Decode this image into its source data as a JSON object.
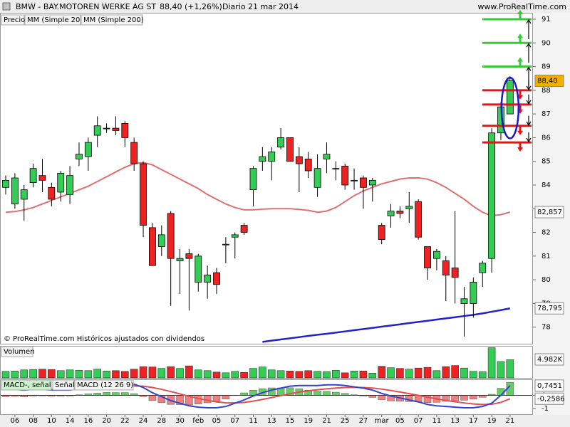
{
  "header": {
    "title": "BMW - BAY.MOTOREN WERKE AG ST",
    "change": "88,40 (+1,26%)",
    "period": "Diario",
    "date": "21 mar 2014",
    "site": "www.ProRealTime.com",
    "note": "© ProRealTime.com Históricos ajustados con dividendos"
  },
  "chart_data": [
    {
      "type": "candlestick",
      "categories": [
        null,
        "06",
        null,
        "08",
        null,
        "10",
        null,
        "14",
        null,
        "16",
        null,
        "20",
        null,
        "22",
        null,
        "24",
        null,
        "28",
        null,
        "30",
        null,
        "feb",
        null,
        "05",
        null,
        "07",
        null,
        "11",
        null,
        "13",
        null,
        "15",
        null,
        "19",
        null,
        "21",
        null,
        "25",
        null,
        "27",
        null,
        "mar",
        null,
        "05",
        null,
        "07",
        null,
        "11",
        null,
        "13",
        null,
        "17",
        null,
        "19",
        null,
        "21"
      ],
      "ylim": [
        77.3,
        91.3
      ],
      "yticks": [
        78,
        79,
        80,
        81,
        82,
        83,
        84,
        85,
        86,
        87,
        88,
        89,
        90,
        91
      ],
      "up_color": "#33cc55",
      "down_color": "#ee2222",
      "series": [
        {
          "name": "Precio",
          "open": [
            83.9,
            83.2,
            83.4,
            84.1,
            84.4,
            83.9,
            83.7,
            83.6,
            85.1,
            85.2,
            86.1,
            86.4,
            86.4,
            86.6,
            85.8,
            84.9,
            82.2,
            81.4,
            82.8,
            80.8,
            81.1,
            79.9,
            79.9,
            80.3,
            81.5,
            81.8,
            82.3,
            83.8,
            85.0,
            85.0,
            85.6,
            86.0,
            85.2,
            85.1,
            83.9,
            85.1,
            84.7,
            84.8,
            84.2,
            84.3,
            84.0,
            82.3,
            82.7,
            82.9,
            83.0,
            83.3,
            81.4,
            80.9,
            80.8,
            80.5,
            79.0,
            79.0,
            80.3,
            80.9,
            86.2,
            87.0
          ],
          "high": [
            84.4,
            84.5,
            84.0,
            84.9,
            85.1,
            84.1,
            84.6,
            84.8,
            85.8,
            86.0,
            86.9,
            86.6,
            86.9,
            86.7,
            86.0,
            85.0,
            82.4,
            82.3,
            82.9,
            81.3,
            81.3,
            81.1,
            80.6,
            80.5,
            81.8,
            82.0,
            82.4,
            84.8,
            85.6,
            85.6,
            86.4,
            86.0,
            85.6,
            85.4,
            85.3,
            85.8,
            85.0,
            84.9,
            84.7,
            84.4,
            84.3,
            82.4,
            83.2,
            83.1,
            83.7,
            83.4,
            81.4,
            81.3,
            81.0,
            82.9,
            79.7,
            80.1,
            80.8,
            86.4,
            87.5,
            88.6
          ],
          "low": [
            83.6,
            83.0,
            82.5,
            83.9,
            83.7,
            83.1,
            83.3,
            83.2,
            84.8,
            84.6,
            85.6,
            86.2,
            86.1,
            85.6,
            84.6,
            81.8,
            80.6,
            81.0,
            78.9,
            79.4,
            78.7,
            79.5,
            79.2,
            79.4,
            80.7,
            80.9,
            81.9,
            83.1,
            84.6,
            84.2,
            85.5,
            85.0,
            83.7,
            84.3,
            83.5,
            84.5,
            84.2,
            83.8,
            83.8,
            83.0,
            83.3,
            81.5,
            82.2,
            82.6,
            82.4,
            81.7,
            80.0,
            80.4,
            79.1,
            79.0,
            77.6,
            78.4,
            79.7,
            80.3,
            85.9,
            87.0
          ],
          "close": [
            84.2,
            84.3,
            83.8,
            84.7,
            84.2,
            83.4,
            84.5,
            84.4,
            85.3,
            85.8,
            86.5,
            86.4,
            86.3,
            86.0,
            84.9,
            82.3,
            80.6,
            81.9,
            80.9,
            80.9,
            80.9,
            81.0,
            80.2,
            79.8,
            81.5,
            81.9,
            82.0,
            84.7,
            85.2,
            85.4,
            86.0,
            85.0,
            84.9,
            84.6,
            84.7,
            85.3,
            84.7,
            84.0,
            84.2,
            83.9,
            84.2,
            81.7,
            82.9,
            82.8,
            83.1,
            81.8,
            80.5,
            81.2,
            80.2,
            80.1,
            79.2,
            79.9,
            80.7,
            86.2,
            87.3,
            88.4
          ],
          "color": "#e8a000",
          "value_labels": [
            null,
            null,
            null,
            null,
            null,
            null,
            null,
            null,
            null,
            null,
            null,
            null,
            null,
            null,
            null,
            null,
            null,
            null,
            null,
            null,
            null,
            null,
            null,
            null,
            null,
            null,
            null,
            null,
            null,
            null,
            null,
            null,
            null,
            null,
            null,
            null,
            null,
            null,
            null,
            null,
            null,
            null,
            null,
            null,
            null,
            null,
            null,
            null,
            null,
            null,
            null,
            null,
            null,
            null,
            null,
            "88,40"
          ]
        },
        {
          "name": "MM (Simple 20)",
          "color": "#e07070",
          "values": [
            82.85,
            82.88,
            82.95,
            83.05,
            83.2,
            83.35,
            83.5,
            83.65,
            83.8,
            83.95,
            84.15,
            84.35,
            84.55,
            84.75,
            84.9,
            84.95,
            84.85,
            84.65,
            84.45,
            84.25,
            84.05,
            83.85,
            83.6,
            83.4,
            83.2,
            83.05,
            82.95,
            82.95,
            82.98,
            83.0,
            83.0,
            83.0,
            82.97,
            82.93,
            82.85,
            82.9,
            83.05,
            83.3,
            83.55,
            83.75,
            83.9,
            84.05,
            84.15,
            84.25,
            84.3,
            84.3,
            84.25,
            84.1,
            83.9,
            83.65,
            83.4,
            83.1,
            82.85,
            82.7,
            82.75,
            82.857
          ],
          "value_labels": [
            null,
            null,
            null,
            null,
            null,
            null,
            null,
            null,
            null,
            null,
            null,
            null,
            null,
            null,
            null,
            null,
            null,
            null,
            null,
            null,
            null,
            null,
            null,
            null,
            null,
            null,
            null,
            null,
            null,
            null,
            null,
            null,
            null,
            null,
            null,
            null,
            null,
            null,
            null,
            null,
            null,
            null,
            null,
            null,
            null,
            null,
            null,
            null,
            null,
            null,
            null,
            null,
            null,
            null,
            null,
            "82,857"
          ]
        },
        {
          "name": "MM (Simple 200)",
          "color": "#2222cc",
          "values": [
            null,
            null,
            null,
            null,
            null,
            null,
            null,
            null,
            null,
            null,
            null,
            null,
            null,
            null,
            null,
            null,
            null,
            null,
            null,
            null,
            null,
            null,
            null,
            null,
            null,
            null,
            null,
            null,
            77.38,
            77.43,
            77.48,
            77.53,
            77.58,
            77.63,
            77.68,
            77.72,
            77.77,
            77.82,
            77.87,
            77.92,
            77.97,
            78.02,
            78.07,
            78.12,
            78.17,
            78.22,
            78.27,
            78.32,
            78.37,
            78.42,
            78.47,
            78.52,
            78.58,
            78.65,
            78.72,
            78.795
          ],
          "value_labels": [
            null,
            null,
            null,
            null,
            null,
            null,
            null,
            null,
            null,
            null,
            null,
            null,
            null,
            null,
            null,
            null,
            null,
            null,
            null,
            null,
            null,
            null,
            null,
            null,
            null,
            null,
            null,
            null,
            null,
            null,
            null,
            null,
            null,
            null,
            null,
            null,
            null,
            null,
            null,
            null,
            null,
            null,
            null,
            null,
            null,
            null,
            null,
            null,
            null,
            null,
            null,
            null,
            null,
            null,
            null,
            "78,795"
          ]
        }
      ],
      "levels": [
        {
          "value": 91,
          "color": "#33cc33"
        },
        {
          "value": 90,
          "color": "#33cc33"
        },
        {
          "value": 89,
          "color": "#33cc33"
        },
        {
          "value": 88,
          "color": "#ee1111"
        },
        {
          "value": 87.4,
          "color": "#ee1111"
        },
        {
          "value": 86.5,
          "color": "#ee1111"
        },
        {
          "value": 85.8,
          "color": "#ee1111"
        }
      ]
    },
    {
      "type": "bar",
      "ylim": [
        0,
        8.6
      ],
      "series": [
        {
          "name": "Volumen",
          "values": [
            1.8,
            1.9,
            2.2,
            2.3,
            2.4,
            2.3,
            2.0,
            2.2,
            2.1,
            2.0,
            2.4,
            1.9,
            2.0,
            1.8,
            2.4,
            3.1,
            3.0,
            2.6,
            3.1,
            2.6,
            3.3,
            2.2,
            2.0,
            1.6,
            1.4,
            1.8,
            1.5,
            2.6,
            3.0,
            2.2,
            2.0,
            1.9,
            1.8,
            2.0,
            1.8,
            1.7,
            2.1,
            1.4,
            1.9,
            1.9,
            1.3,
            3.2,
            2.8,
            2.6,
            2.4,
            2.7,
            2.9,
            2.0,
            3.1,
            3.4,
            2.7,
            1.8,
            1.7,
            8.3,
            4.5,
            4.982
          ],
          "value_labels": [
            null,
            null,
            null,
            null,
            null,
            null,
            null,
            null,
            null,
            null,
            null,
            null,
            null,
            null,
            null,
            null,
            null,
            null,
            null,
            null,
            null,
            null,
            null,
            null,
            null,
            null,
            null,
            null,
            null,
            null,
            null,
            null,
            null,
            null,
            null,
            null,
            null,
            null,
            null,
            null,
            null,
            null,
            null,
            null,
            null,
            null,
            null,
            null,
            null,
            null,
            null,
            null,
            null,
            null,
            null,
            "4.982K"
          ]
        }
      ]
    },
    {
      "type": "macd",
      "ylim": [
        -1.44,
        1.17
      ],
      "yticks": [
        0,
        -1
      ],
      "series": [
        {
          "name": "MACD-, señal",
          "color": "#66cc66",
          "neg_color": "#f08080",
          "values": [
            -0.1,
            -0.08,
            -0.11,
            -0.05,
            -0.04,
            -0.07,
            -0.06,
            -0.05,
            0.04,
            0.11,
            0.17,
            0.22,
            0.21,
            0.21,
            0.13,
            -0.1,
            -0.4,
            -0.56,
            -0.69,
            -0.71,
            -0.73,
            -0.66,
            -0.57,
            -0.45,
            -0.28,
            -0.02,
            0.19,
            0.39,
            0.51,
            0.57,
            0.57,
            0.58,
            0.5,
            0.4,
            0.32,
            0.3,
            0.24,
            0.15,
            0.04,
            -0.05,
            -0.16,
            -0.33,
            -0.42,
            -0.45,
            -0.48,
            -0.5,
            -0.56,
            -0.53,
            -0.46,
            -0.41,
            -0.37,
            -0.29,
            -0.15,
            0.08,
            0.54,
            1.0
          ]
        },
        {
          "name": "Señal",
          "color": "#e05050",
          "values": [
            0.55,
            0.53,
            0.51,
            0.5,
            0.49,
            0.47,
            0.46,
            0.45,
            0.46,
            0.49,
            0.53,
            0.58,
            0.64,
            0.69,
            0.72,
            0.7,
            0.6,
            0.46,
            0.29,
            0.11,
            -0.07,
            -0.24,
            -0.38,
            -0.5,
            -0.57,
            -0.58,
            -0.54,
            -0.44,
            -0.31,
            -0.17,
            -0.02,
            0.12,
            0.25,
            0.35,
            0.43,
            0.5,
            0.56,
            0.6,
            0.61,
            0.6,
            0.56,
            0.48,
            0.37,
            0.25,
            0.13,
            0.0,
            -0.14,
            -0.27,
            -0.39,
            -0.49,
            -0.58,
            -0.66,
            -0.7,
            -0.68,
            -0.54,
            -0.2586
          ],
          "value_labels": [
            null,
            null,
            null,
            null,
            null,
            null,
            null,
            null,
            null,
            null,
            null,
            null,
            null,
            null,
            null,
            null,
            null,
            null,
            null,
            null,
            null,
            null,
            null,
            null,
            null,
            null,
            null,
            null,
            null,
            null,
            null,
            null,
            null,
            null,
            null,
            null,
            null,
            null,
            null,
            null,
            null,
            null,
            null,
            null,
            null,
            null,
            null,
            null,
            null,
            null,
            null,
            null,
            null,
            null,
            null,
            "-0,2586"
          ]
        },
        {
          "name": "MACD (12 26 9)",
          "color": "#3344cc",
          "values": [
            0.45,
            0.45,
            0.4,
            0.45,
            0.45,
            0.4,
            0.4,
            0.4,
            0.5,
            0.6,
            0.7,
            0.8,
            0.85,
            0.9,
            0.85,
            0.6,
            0.2,
            -0.1,
            -0.4,
            -0.6,
            -0.8,
            -0.9,
            -0.95,
            -0.95,
            -0.85,
            -0.6,
            -0.35,
            -0.05,
            0.2,
            0.4,
            0.55,
            0.7,
            0.75,
            0.75,
            0.75,
            0.8,
            0.8,
            0.75,
            0.65,
            0.55,
            0.4,
            0.15,
            -0.05,
            -0.2,
            -0.35,
            -0.5,
            -0.7,
            -0.8,
            -0.85,
            -0.9,
            -0.95,
            -0.95,
            -0.85,
            -0.6,
            0.0,
            0.7451
          ],
          "value_labels": [
            null,
            null,
            null,
            null,
            null,
            null,
            null,
            null,
            null,
            null,
            null,
            null,
            null,
            null,
            null,
            null,
            null,
            null,
            null,
            null,
            null,
            null,
            null,
            null,
            null,
            null,
            null,
            null,
            null,
            null,
            null,
            null,
            null,
            null,
            null,
            null,
            null,
            null,
            null,
            null,
            null,
            null,
            null,
            null,
            null,
            null,
            null,
            null,
            null,
            null,
            null,
            null,
            null,
            null,
            null,
            "0,7451"
          ]
        }
      ]
    }
  ]
}
